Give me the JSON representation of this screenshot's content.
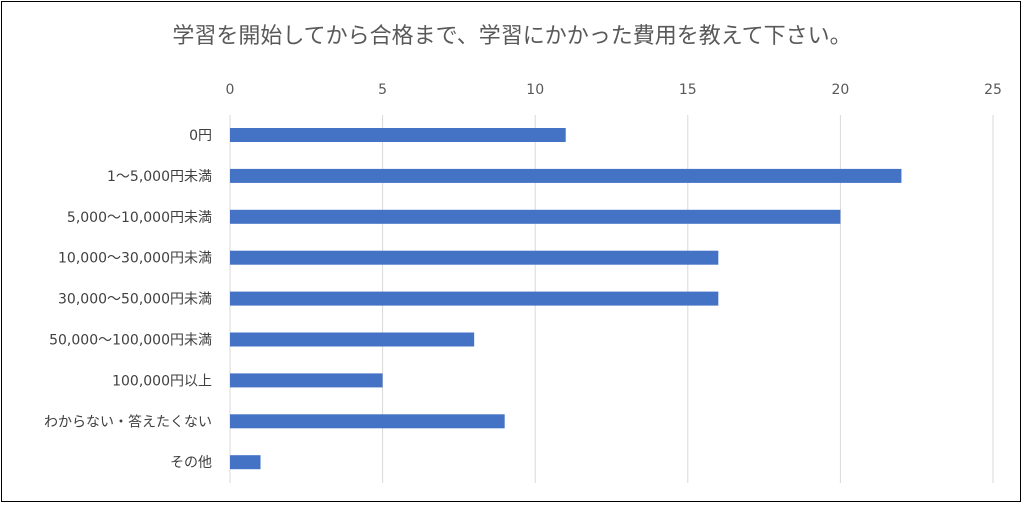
{
  "chart_data": {
    "type": "bar",
    "orientation": "horizontal",
    "title": "学習を開始してから合格まで、学習にかかった費用を教えて下さい。",
    "categories": [
      "0円",
      "1～5,000円未満",
      "5,000～10,000円未満",
      "10,000～30,000円未満",
      "30,000～50,000円未満",
      "50,000～100,000円未満",
      "100,000円以上",
      "わからない・答えたくない",
      "その他"
    ],
    "values": [
      11,
      22,
      20,
      16,
      16,
      8,
      5,
      9,
      1
    ],
    "xlim": [
      0,
      25
    ],
    "xticks": [
      0,
      5,
      10,
      15,
      20,
      25
    ],
    "grid": true,
    "bar_color": "#4472C4",
    "grid_color": "#D9D9D9"
  }
}
